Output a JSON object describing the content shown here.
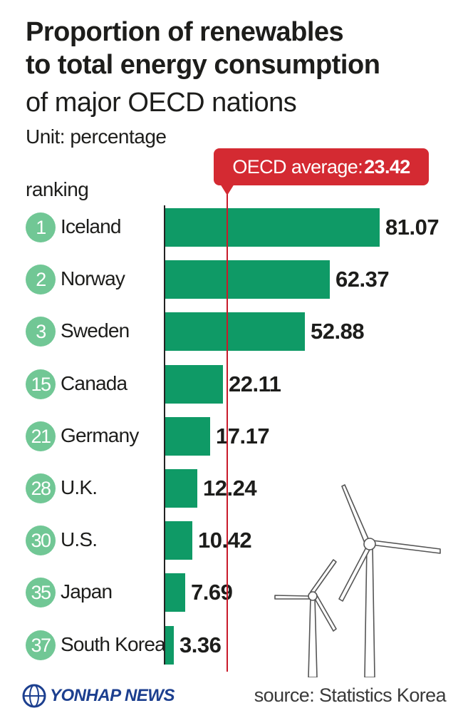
{
  "header": {
    "title_line1": "Proportion of renewables",
    "title_line2": "to total energy consumption",
    "subtitle": "of major OECD nations",
    "unit": "Unit: percentage",
    "ranking_label": "ranking"
  },
  "average": {
    "label": "OECD average:",
    "value": 23.42
  },
  "chart_data": {
    "type": "bar",
    "orientation": "horizontal",
    "title": "Proportion of renewables to total energy consumption of major OECD nations",
    "unit": "percentage",
    "categories": [
      "Iceland",
      "Norway",
      "Sweden",
      "Canada",
      "Germany",
      "U.K.",
      "U.S.",
      "Japan",
      "South Korea"
    ],
    "ranks": [
      "1",
      "2",
      "3",
      "15",
      "21",
      "28",
      "30",
      "35",
      "37"
    ],
    "values": [
      81.07,
      62.37,
      52.88,
      22.11,
      17.17,
      12.24,
      10.42,
      7.69,
      3.36
    ],
    "reference_line": {
      "label": "OECD average",
      "value": 23.42
    },
    "xlim": [
      0,
      81.07
    ],
    "grid": false,
    "legend": "none"
  },
  "colors": {
    "bar": "#0f9a66",
    "badge": "#71c795",
    "average": "#d42a32",
    "logo": "#1c3f8f"
  },
  "footer": {
    "logo_text": "YONHAP NEWS",
    "source": "source: Statistics Korea"
  }
}
